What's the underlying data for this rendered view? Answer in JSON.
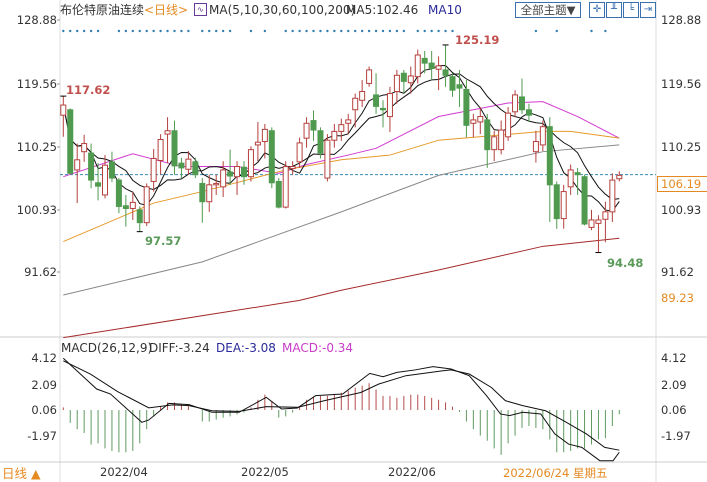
{
  "header": {
    "title": "布伦特原油连续",
    "period": "<日线>",
    "ma_label": "MA(5,10,30,60,100,200)",
    "ma5_value": "MA5:102.46",
    "ma10_label": "MA10",
    "theme_button": "全部主题▼",
    "icons": [
      "crosshair-icon",
      "chart-icon-1",
      "chart-icon-2",
      "exit-icon"
    ]
  },
  "price_axis": {
    "labels": [
      "128.88",
      "119.56",
      "110.25",
      "100.93",
      "91.62"
    ],
    "current": "106.19",
    "lower": "89.23"
  },
  "annotations": {
    "start_high": "117.62",
    "low1": "97.57",
    "peak": "125.19",
    "low2": "94.48"
  },
  "macd": {
    "title": "MACD(26,12,9)",
    "diff": "DIFF:-3.24",
    "dea": "DEA:-3.08",
    "macd": "MACD:-0.34",
    "labels": [
      "4.12",
      "2.09",
      "0.06",
      "-1.97"
    ]
  },
  "footer": {
    "period_toggle": "日线 ▲",
    "dates": [
      "2022/04",
      "2022/05",
      "2022/06"
    ],
    "cursor_date": "2022/06/24 星期五"
  },
  "colors": {
    "up": "#b5403d",
    "down": "#4f9a4f",
    "ma30": "#d23bd0",
    "ma60": "#e59a2a",
    "ma100": "#888888",
    "ma200": "#a52a2a",
    "dots": "#2f7fb0",
    "accent": "#e58a22"
  },
  "chart_data": [
    {
      "type": "candlestick",
      "title": "布伦特原油连续",
      "ylim": [
        82,
        128.88
      ],
      "ohlc": [
        [
          114.8,
          117.62,
          111.6,
          116.3
        ],
        [
          115.6,
          115.8,
          106,
          106.2
        ],
        [
          106.7,
          110.6,
          101.8,
          108.2
        ],
        [
          109.4,
          111.9,
          107.9,
          110.6
        ],
        [
          109.2,
          110.6,
          104,
          105.2
        ],
        [
          104.8,
          107.7,
          102.2,
          104.3
        ],
        [
          103,
          108.9,
          102.5,
          107.4
        ],
        [
          107.9,
          109.4,
          104.9,
          105.5
        ],
        [
          105.2,
          105.5,
          100.3,
          101.3
        ],
        [
          101.4,
          103,
          98.3,
          101
        ],
        [
          101,
          103.5,
          99.3,
          101.9
        ],
        [
          100.8,
          101.3,
          97.57,
          98.9
        ],
        [
          98.9,
          104.7,
          98.4,
          104.2
        ],
        [
          105,
          109.8,
          103.5,
          108.4
        ],
        [
          108.1,
          112,
          106,
          111.2
        ],
        [
          112,
          114.5,
          107.7,
          112.5
        ],
        [
          112.5,
          114,
          106,
          107.3
        ],
        [
          107.7,
          108.5,
          105.5,
          107
        ],
        [
          106.8,
          109.5,
          106,
          108.3
        ],
        [
          107.9,
          108.5,
          105.5,
          106
        ],
        [
          104.7,
          105.5,
          98.9,
          102
        ],
        [
          102,
          106,
          100.5,
          104.5
        ],
        [
          104.5,
          106,
          103,
          104.7
        ],
        [
          104.2,
          108,
          102.7,
          106.7
        ],
        [
          106.4,
          109.7,
          104.5,
          105.8
        ],
        [
          105.7,
          108,
          103,
          107.2
        ],
        [
          107.1,
          108,
          104.5,
          105.7
        ],
        [
          105.7,
          110.2,
          105,
          109.7
        ],
        [
          110.4,
          113.8,
          108,
          110.8
        ],
        [
          110.9,
          113.5,
          108.4,
          112.7
        ],
        [
          112.5,
          113,
          104,
          104.8
        ],
        [
          105,
          105.5,
          101,
          101.2
        ],
        [
          101.2,
          108,
          101,
          107.2
        ],
        [
          106.9,
          108,
          106,
          107.2
        ],
        [
          107.9,
          111.5,
          107,
          110.7
        ],
        [
          111.4,
          114.5,
          110,
          113.6
        ],
        [
          114,
          115.5,
          111,
          112.6
        ],
        [
          112.5,
          113,
          108.4,
          109.2
        ],
        [
          105.5,
          112,
          105,
          111.1
        ],
        [
          111.1,
          113.5,
          110,
          112.4
        ],
        [
          112.4,
          114.3,
          111,
          113.4
        ],
        [
          113.6,
          115,
          112,
          114.1
        ],
        [
          115.6,
          118,
          113,
          117.3
        ],
        [
          117,
          120,
          116,
          118.3
        ],
        [
          119.5,
          122,
          119,
          121.5
        ],
        [
          117.8,
          121,
          115,
          116.1
        ],
        [
          115.8,
          117,
          113,
          115.6
        ],
        [
          114.6,
          119,
          112.3,
          118
        ],
        [
          118.3,
          121.5,
          116.5,
          120.7
        ],
        [
          121,
          121.5,
          118,
          119.8
        ],
        [
          119.6,
          122,
          118,
          120.6
        ],
        [
          120.5,
          124.5,
          119.5,
          123.7
        ],
        [
          123.2,
          124.3,
          121,
          122.5
        ],
        [
          122.5,
          124.3,
          120,
          121.7
        ],
        [
          121.6,
          123.5,
          118.5,
          122.1
        ],
        [
          121.5,
          125.19,
          119,
          120.7
        ],
        [
          120.5,
          121,
          117.5,
          118.5
        ],
        [
          119.3,
          121.5,
          116,
          118.8
        ],
        [
          118.6,
          120,
          111.5,
          113.3
        ],
        [
          113.6,
          115,
          111.5,
          114.1
        ],
        [
          113.8,
          116,
          112,
          114.6
        ],
        [
          114.1,
          115,
          107,
          109.7
        ],
        [
          109.7,
          112.5,
          108,
          111.6
        ],
        [
          109.7,
          114,
          109,
          112.6
        ],
        [
          111.6,
          116,
          111,
          115.1
        ],
        [
          115.3,
          118.5,
          114.5,
          117.8
        ],
        [
          117.5,
          120.2,
          115,
          115.6
        ],
        [
          115.6,
          116.5,
          113.8,
          114.8
        ],
        [
          109.4,
          112.5,
          107.8,
          110.9
        ],
        [
          110.4,
          114,
          109.5,
          113.1
        ],
        [
          113.1,
          114.5,
          99,
          104.5
        ],
        [
          104.5,
          105,
          98,
          99.5
        ],
        [
          99.5,
          104.5,
          98,
          103.5
        ],
        [
          104.2,
          107.5,
          103,
          106.7
        ],
        [
          106.3,
          107,
          103,
          106
        ],
        [
          105.7,
          106,
          98.5,
          98.7
        ],
        [
          98.2,
          100.8,
          97.8,
          99.3
        ],
        [
          98.8,
          100,
          94.48,
          99.3
        ],
        [
          99.4,
          102,
          96,
          100.5
        ],
        [
          100.5,
          106.2,
          99,
          105.2
        ],
        [
          105.4,
          106.5,
          105,
          105.9
        ]
      ],
      "moving_averages": {
        "MA30": [
          [
            0,
            105.7
          ],
          [
            10,
            109.1
          ],
          [
            17,
            107.2
          ],
          [
            25,
            107.2
          ],
          [
            31,
            106.2
          ],
          [
            35,
            107.5
          ],
          [
            41,
            108.9
          ],
          [
            45,
            109.9
          ],
          [
            54,
            114.6
          ],
          [
            64,
            116.6
          ],
          [
            69,
            116.8
          ],
          [
            74,
            114.6
          ],
          [
            80,
            111.4
          ]
        ],
        "MA60": [
          [
            0,
            96.1
          ],
          [
            13,
            101.8
          ],
          [
            20,
            103.5
          ],
          [
            32,
            106.7
          ],
          [
            40,
            108.2
          ],
          [
            47,
            108.9
          ],
          [
            54,
            111.1
          ],
          [
            69,
            112.4
          ],
          [
            73,
            112.4
          ],
          [
            80,
            111.4
          ]
        ],
        "MA100": [
          [
            0,
            88.2
          ],
          [
            20,
            93.1
          ],
          [
            40,
            100.5
          ],
          [
            54,
            105.9
          ],
          [
            69,
            109.4
          ],
          [
            80,
            110.4
          ]
        ],
        "MA200": [
          [
            0,
            81.9
          ],
          [
            34,
            87.4
          ],
          [
            40,
            88.9
          ],
          [
            54,
            91.9
          ],
          [
            69,
            95.4
          ],
          [
            80,
            96.6
          ]
        ]
      },
      "marker_dots": [
        0,
        1,
        2,
        3,
        4,
        5,
        8,
        9,
        10,
        11,
        12,
        13,
        14,
        15,
        16,
        17,
        18,
        20,
        21,
        22,
        23,
        24,
        27,
        29,
        32,
        33,
        34,
        35,
        36,
        37,
        38,
        39,
        40,
        41,
        42,
        43,
        44,
        45,
        46,
        47,
        48,
        49,
        51,
        52,
        53,
        54,
        55,
        56,
        68,
        71,
        76,
        78
      ],
      "reference_line": 106.0
    },
    {
      "type": "macd",
      "title": "MACD(26,12,9)",
      "ylim": [
        -3.8,
        4.12
      ],
      "histogram": [
        0.2,
        -1.0,
        -1.5,
        -1.8,
        -2.7,
        -2.6,
        -3.0,
        -3.2,
        -3.3,
        -3.3,
        -3.2,
        -2.6,
        -1.5,
        -0.5,
        0.3,
        0.6,
        0.6,
        0.45,
        0.3,
        0,
        -0.9,
        -0.9,
        -0.75,
        -0.6,
        -0.5,
        -0.35,
        -0.2,
        0.2,
        0.8,
        1.2,
        0.7,
        -0.6,
        -0.5,
        -0.2,
        0.3,
        0.8,
        1.0,
        1.1,
        1.1,
        1.2,
        1.35,
        1.5,
        1.75,
        1.9,
        2.1,
        1.6,
        1.1,
        1.1,
        0.95,
        1.1,
        1.2,
        1.2,
        1.1,
        0.95,
        0.8,
        0.6,
        0.26,
        -0.15,
        -0.9,
        -1.5,
        -2.0,
        -2.4,
        -3.0,
        -3.5,
        -2.6,
        -2.0,
        -1.4,
        -1.25,
        -1.4,
        -1.5,
        -2.3,
        -3.3,
        -3.3,
        -3.2,
        -3.0,
        -3.0,
        -2.7,
        -2.3,
        -2.2,
        -1.25,
        -0.34
      ],
      "DIFF": [
        [
          0,
          4.1
        ],
        [
          4.8,
          1.7
        ],
        [
          6.8,
          1.31
        ],
        [
          11.3,
          -0.9
        ],
        [
          12.3,
          -0.72
        ],
        [
          15.2,
          0.58
        ],
        [
          18.1,
          0.48
        ],
        [
          21.4,
          -0.12
        ],
        [
          25.3,
          -0.12
        ],
        [
          29.2,
          1.05
        ],
        [
          31.4,
          0.14
        ],
        [
          33.7,
          0.22
        ],
        [
          36.3,
          1.18
        ],
        [
          40.2,
          1.31
        ],
        [
          44.1,
          2.92
        ],
        [
          46,
          2.66
        ],
        [
          48,
          3.0
        ],
        [
          50.6,
          3.19
        ],
        [
          53.2,
          3.45
        ],
        [
          55.8,
          3.26
        ],
        [
          58.4,
          2.74
        ],
        [
          60.9,
          1.18
        ],
        [
          62.9,
          -0.25
        ],
        [
          64.2,
          -0.38
        ],
        [
          66.1,
          -0.12
        ],
        [
          68.7,
          -0.25
        ],
        [
          70.7,
          -1.8
        ],
        [
          72.7,
          -2.6
        ],
        [
          74.6,
          -2.86
        ],
        [
          77.2,
          -3.9
        ],
        [
          79.1,
          -3.9
        ],
        [
          80,
          -3.24
        ]
      ],
      "DEA": [
        [
          0,
          3.9
        ],
        [
          3.9,
          2.87
        ],
        [
          7.8,
          1.5
        ],
        [
          12.3,
          0.23
        ],
        [
          15.7,
          0.46
        ],
        [
          18.1,
          0.4
        ],
        [
          21.4,
          0
        ],
        [
          25.3,
          -0.05
        ],
        [
          29.2,
          0.32
        ],
        [
          33.7,
          0.27
        ],
        [
          37.6,
          0.79
        ],
        [
          42.8,
          1.43
        ],
        [
          45.4,
          2.09
        ],
        [
          49.3,
          2.74
        ],
        [
          54.5,
          3.12
        ],
        [
          55.8,
          3.19
        ],
        [
          58.4,
          2.87
        ],
        [
          61.6,
          1.82
        ],
        [
          63.6,
          0.79
        ],
        [
          66.1,
          0.4
        ],
        [
          69.4,
          0
        ],
        [
          72,
          -0.78
        ],
        [
          75.3,
          -1.82
        ],
        [
          77.9,
          -2.86
        ],
        [
          80,
          -3.08
        ]
      ]
    }
  ]
}
